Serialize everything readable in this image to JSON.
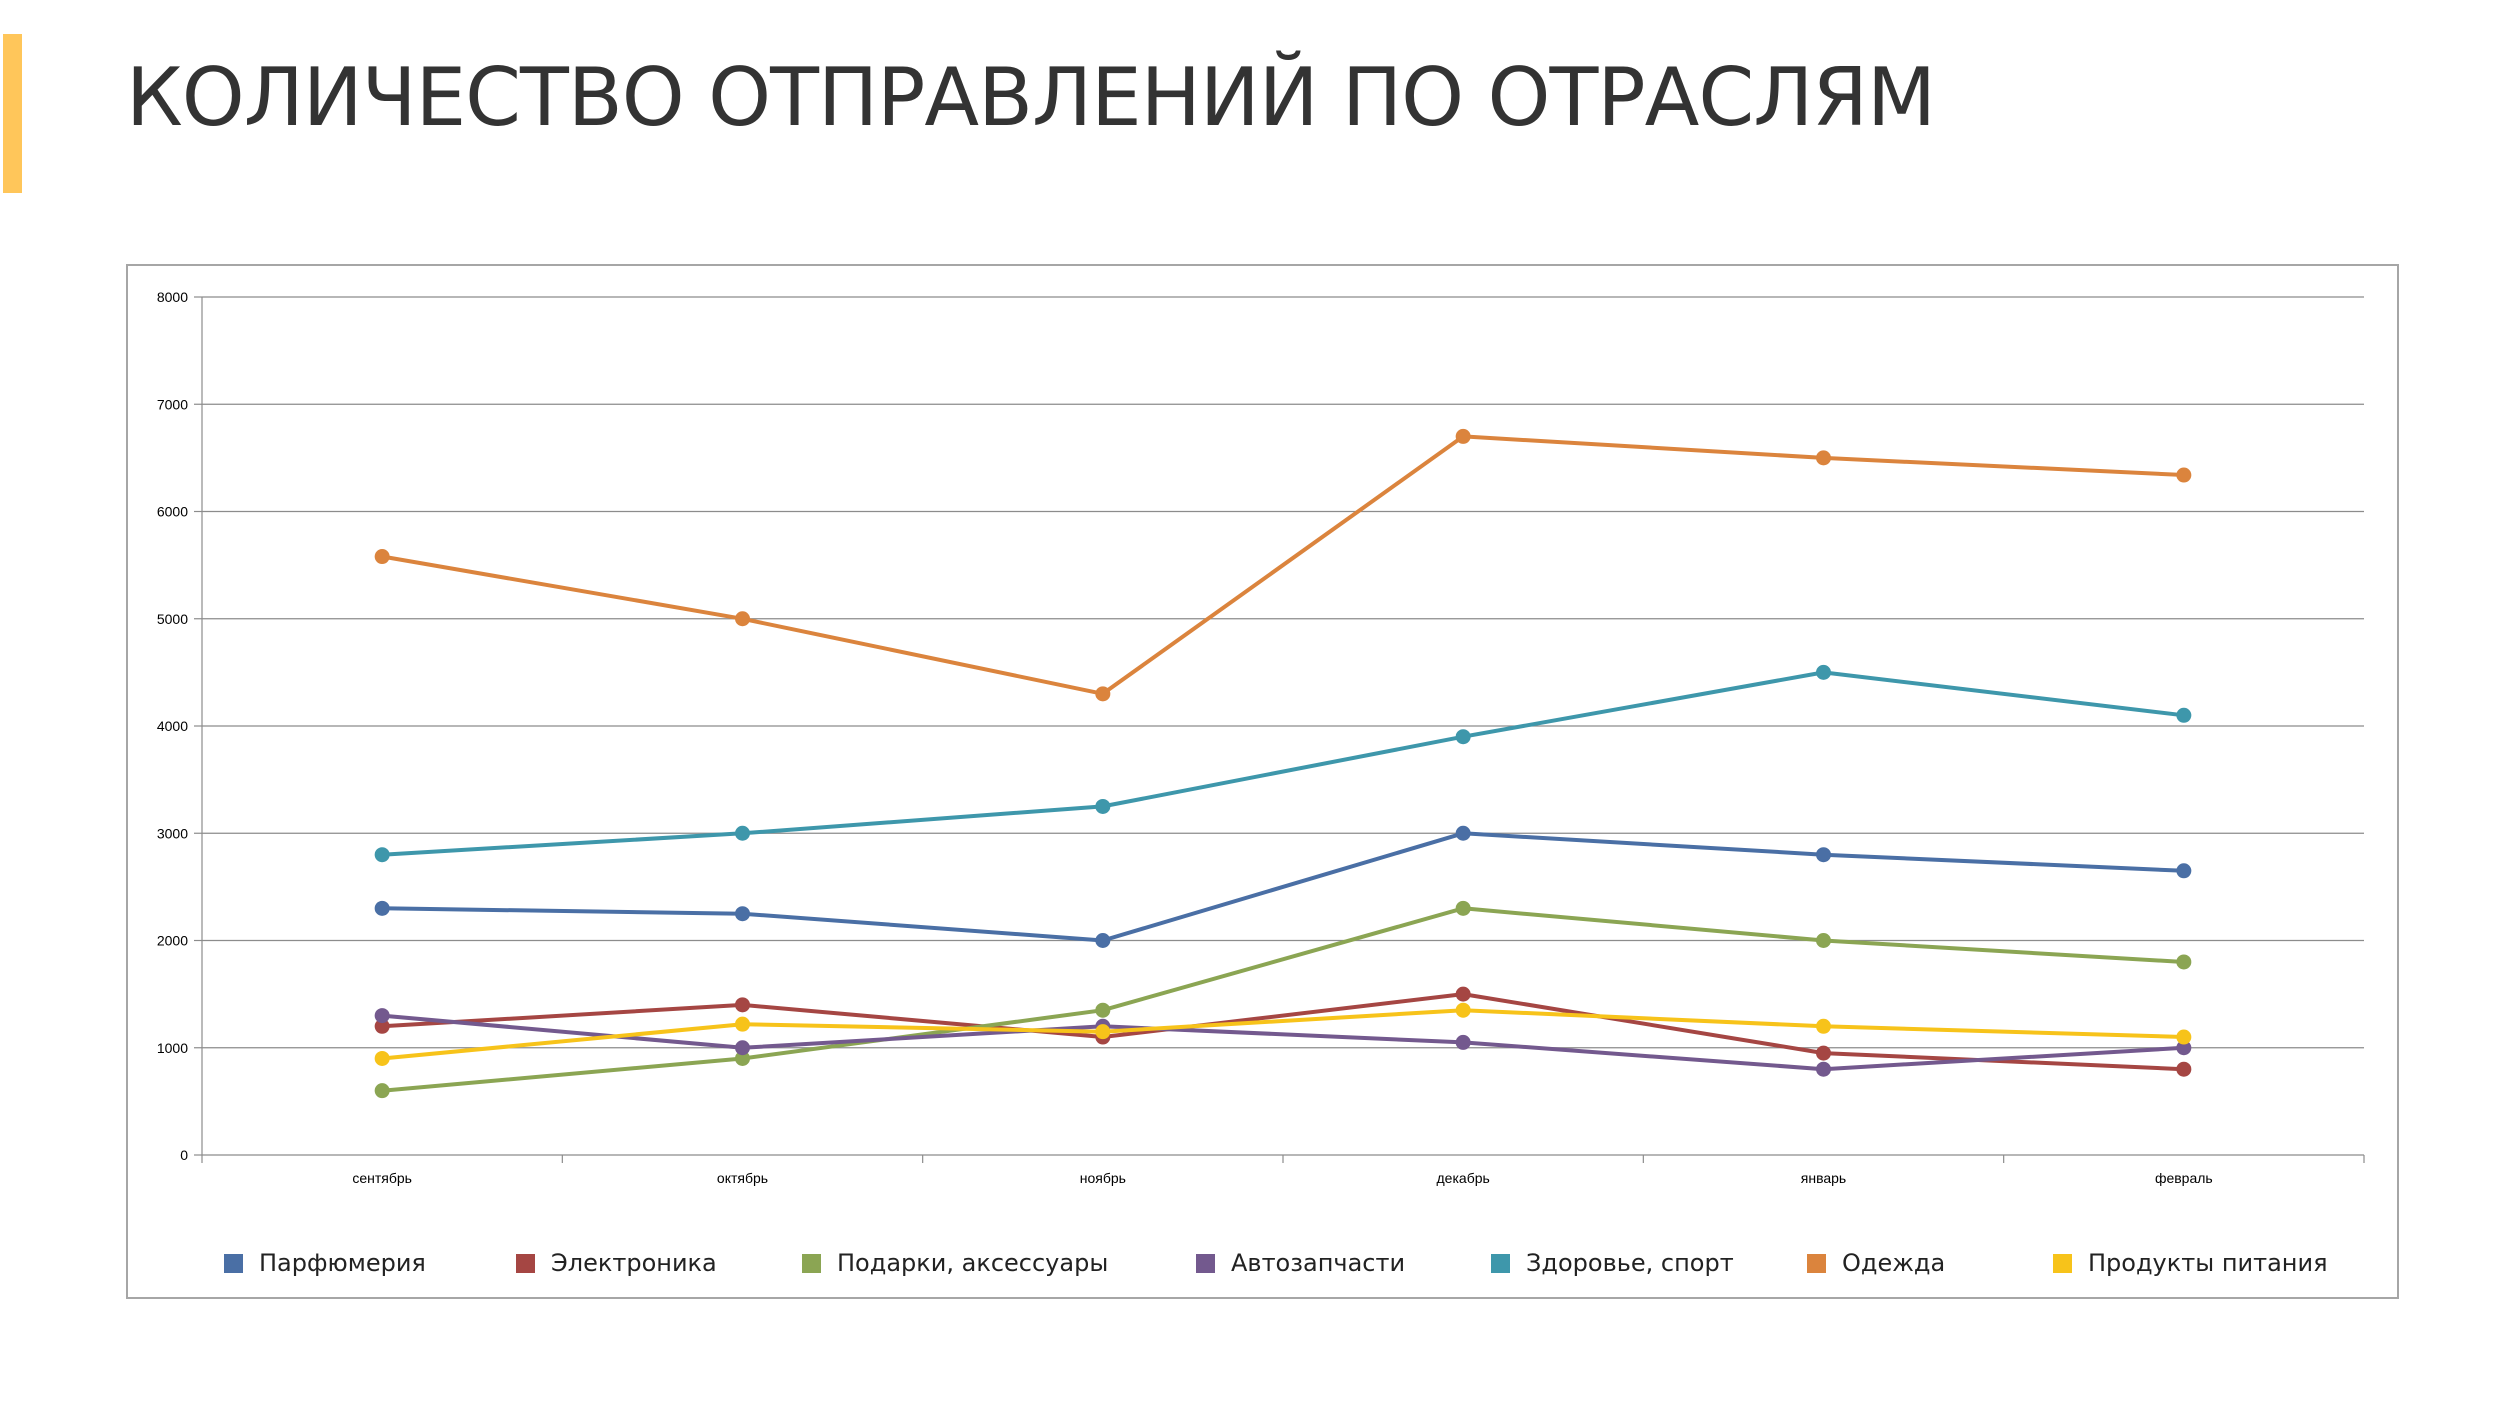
{
  "slide": {
    "title": "КОЛИЧЕСТВО ОТПРАВЛЕНИЙ ПО ОТРАСЛЯМ",
    "accent_color": "#FFC65A"
  },
  "chart_data": {
    "type": "line",
    "title": "",
    "xlabel": "",
    "ylabel": "",
    "categories": [
      "сентябрь",
      "октябрь",
      "ноябрь",
      "декабрь",
      "январь",
      "февраль"
    ],
    "ylim": [
      0,
      8000
    ],
    "y_ticks": [
      "0",
      "1000",
      "2000",
      "3000",
      "4000",
      "5000",
      "6000",
      "7000",
      "8000"
    ],
    "grid": true,
    "legend_position": "bottom",
    "series": [
      {
        "name": "Парфюмерия",
        "color": "#4A6FA5",
        "values": [
          2300,
          2250,
          2000,
          3000,
          2800,
          2650
        ]
      },
      {
        "name": "Электроника",
        "color": "#A54643",
        "values": [
          1200,
          1400,
          1100,
          1500,
          950,
          800
        ]
      },
      {
        "name": "Подарки, аксессуары",
        "color": "#8BA553",
        "values": [
          600,
          900,
          1350,
          2300,
          2000,
          1800
        ]
      },
      {
        "name": "Автозапчасти",
        "color": "#73598E",
        "values": [
          1300,
          1000,
          1200,
          1050,
          800,
          1000
        ]
      },
      {
        "name": "Здоровье, спорт",
        "color": "#3E97AB",
        "values": [
          2800,
          3000,
          3250,
          3900,
          4500,
          4100
        ]
      },
      {
        "name": "Одежда",
        "color": "#DB843D",
        "values": [
          5580,
          5000,
          4300,
          6700,
          6500,
          6340
        ]
      },
      {
        "name": "Продукты питания",
        "color": "#F7C31A",
        "values": [
          900,
          1220,
          1150,
          1350,
          1200,
          1100
        ]
      }
    ]
  }
}
